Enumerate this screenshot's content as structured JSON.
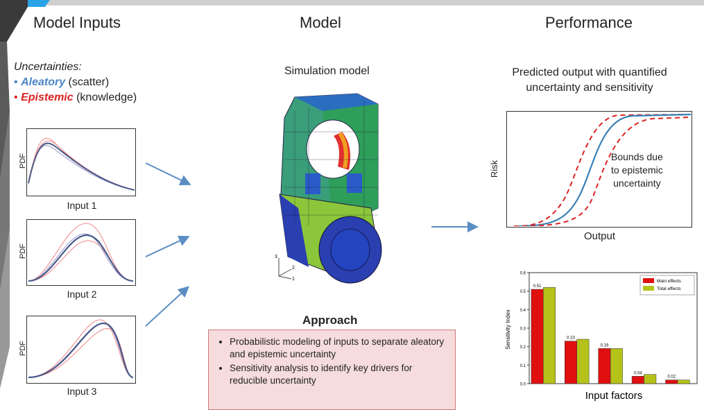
{
  "headers": {
    "inputs": "Model Inputs",
    "model": "Model",
    "performance": "Performance"
  },
  "uncertainties": {
    "title": "Uncertainties:",
    "aleatory_word": "Aleatory",
    "aleatory_rest": " (scatter)",
    "epistemic_word": "Epistemic",
    "epistemic_rest": " (knowledge)",
    "bullet": "•"
  },
  "inputs": [
    {
      "axis": "PDF",
      "label": "Input 1"
    },
    {
      "axis": "PDF",
      "label": "Input 2"
    },
    {
      "axis": "PDF",
      "label": "Input 3"
    }
  ],
  "model": {
    "sim_title": "Simulation model",
    "axes_labels": [
      "3",
      "2",
      "1"
    ]
  },
  "approach": {
    "title": "Approach",
    "items": [
      "Probabilistic modeling of inputs to separate aleatory and epistemic uncertainty",
      "Sensitivity analysis to identify key drivers for reducible uncertainty"
    ]
  },
  "performance": {
    "subtitle_1": "Predicted output with quantified",
    "subtitle_2": "uncertainty and sensitivity",
    "risk_ylabel": "Risk",
    "risk_xlabel": "Output",
    "bounds_1": "Bounds due",
    "bounds_2": "to epistemic",
    "bounds_3": "uncertainty"
  },
  "colors": {
    "blue_curve": "#3a7fb5",
    "red_dashed": "#dd2222",
    "main_effects": "#e01010",
    "total_effects": "#b5c21a",
    "approach_bg": "#f6dcdc"
  },
  "chart_data": {
    "type": "bar",
    "xlabel": "Input factors",
    "ylabel": "Sensitivity Index",
    "ylim": [
      0,
      0.6
    ],
    "yticks": [
      "0.0",
      "0.1",
      "0.2",
      "0.3",
      "0.4",
      "0.5",
      "0.6"
    ],
    "legend_position": "top-right",
    "series": [
      {
        "name": "Main effects",
        "values": [
          0.51,
          0.23,
          0.19,
          0.04,
          0.02
        ]
      },
      {
        "name": "Total effects",
        "values": [
          0.52,
          0.24,
          0.19,
          0.05,
          0.02
        ]
      }
    ],
    "data_labels": [
      "0.51",
      "0.23",
      "0.19",
      "0.04",
      "0.02"
    ]
  }
}
